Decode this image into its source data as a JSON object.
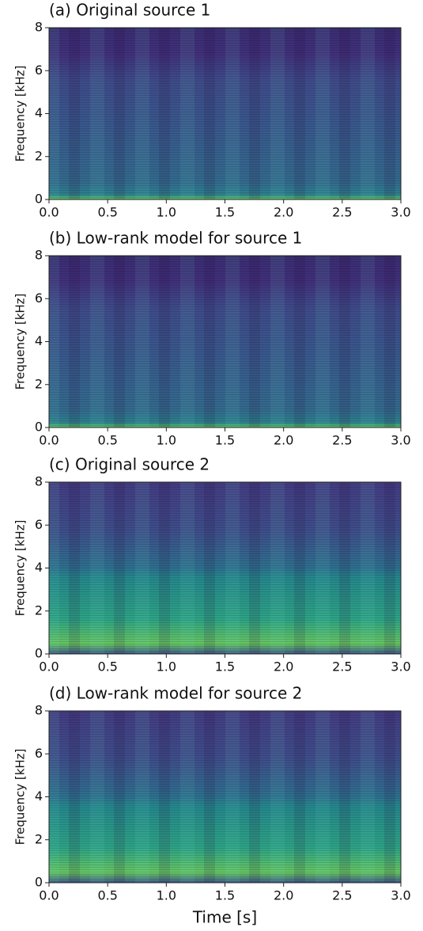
{
  "chart_data": [
    {
      "type": "heatmap",
      "title": "(a) Original source 1",
      "ylabel": "Frequency [kHz]",
      "xlim": [
        0,
        3
      ],
      "xticks": [
        {
          "value": 0,
          "label": "0.0"
        },
        {
          "value": 0.5,
          "label": "0.5"
        },
        {
          "value": 1,
          "label": "1.0"
        },
        {
          "value": 1.5,
          "label": "1.5"
        },
        {
          "value": 2,
          "label": "2.0"
        },
        {
          "value": 2.5,
          "label": "2.5"
        },
        {
          "value": 3,
          "label": "3.0"
        }
      ],
      "ylim": [
        0,
        8
      ],
      "yticks": [
        0,
        2,
        4,
        6,
        8
      ]
    },
    {
      "type": "heatmap",
      "title": "(b) Low-rank model for source 1",
      "ylabel": "Frequency [kHz]",
      "xlim": [
        0,
        3
      ],
      "xticks": [
        {
          "value": 0,
          "label": "0.0"
        },
        {
          "value": 0.5,
          "label": "0.5"
        },
        {
          "value": 1,
          "label": "1.0"
        },
        {
          "value": 1.5,
          "label": "1.5"
        },
        {
          "value": 2,
          "label": "2.0"
        },
        {
          "value": 2.5,
          "label": "2.5"
        },
        {
          "value": 3,
          "label": "3.0"
        }
      ],
      "ylim": [
        0,
        8
      ],
      "yticks": [
        0,
        2,
        4,
        6,
        8
      ]
    },
    {
      "type": "heatmap",
      "title": "(c) Original source 2",
      "ylabel": "Frequency [kHz]",
      "xlim": [
        0,
        3
      ],
      "xticks": [
        {
          "value": 0,
          "label": "0.0"
        },
        {
          "value": 0.5,
          "label": "0.5"
        },
        {
          "value": 1,
          "label": "1.0"
        },
        {
          "value": 1.5,
          "label": "1.5"
        },
        {
          "value": 2,
          "label": "2.0"
        },
        {
          "value": 2.5,
          "label": "2.5"
        },
        {
          "value": 3,
          "label": "3.0"
        }
      ],
      "ylim": [
        0,
        8
      ],
      "yticks": [
        0,
        2,
        4,
        6,
        8
      ]
    },
    {
      "type": "heatmap",
      "title": "(d) Low-rank model for source 2",
      "ylabel": "Frequency [kHz]",
      "xlabel": "Time [s]",
      "xlim": [
        0,
        3
      ],
      "xticks": [
        {
          "value": 0,
          "label": "0.0"
        },
        {
          "value": 0.5,
          "label": "0.5"
        },
        {
          "value": 1,
          "label": "1.0"
        },
        {
          "value": 1.5,
          "label": "1.5"
        },
        {
          "value": 2,
          "label": "2.0"
        },
        {
          "value": 2.5,
          "label": "2.5"
        },
        {
          "value": 3,
          "label": "3.0"
        }
      ],
      "ylim": [
        0,
        8
      ],
      "yticks": [
        0,
        2,
        4,
        6,
        8
      ]
    }
  ]
}
